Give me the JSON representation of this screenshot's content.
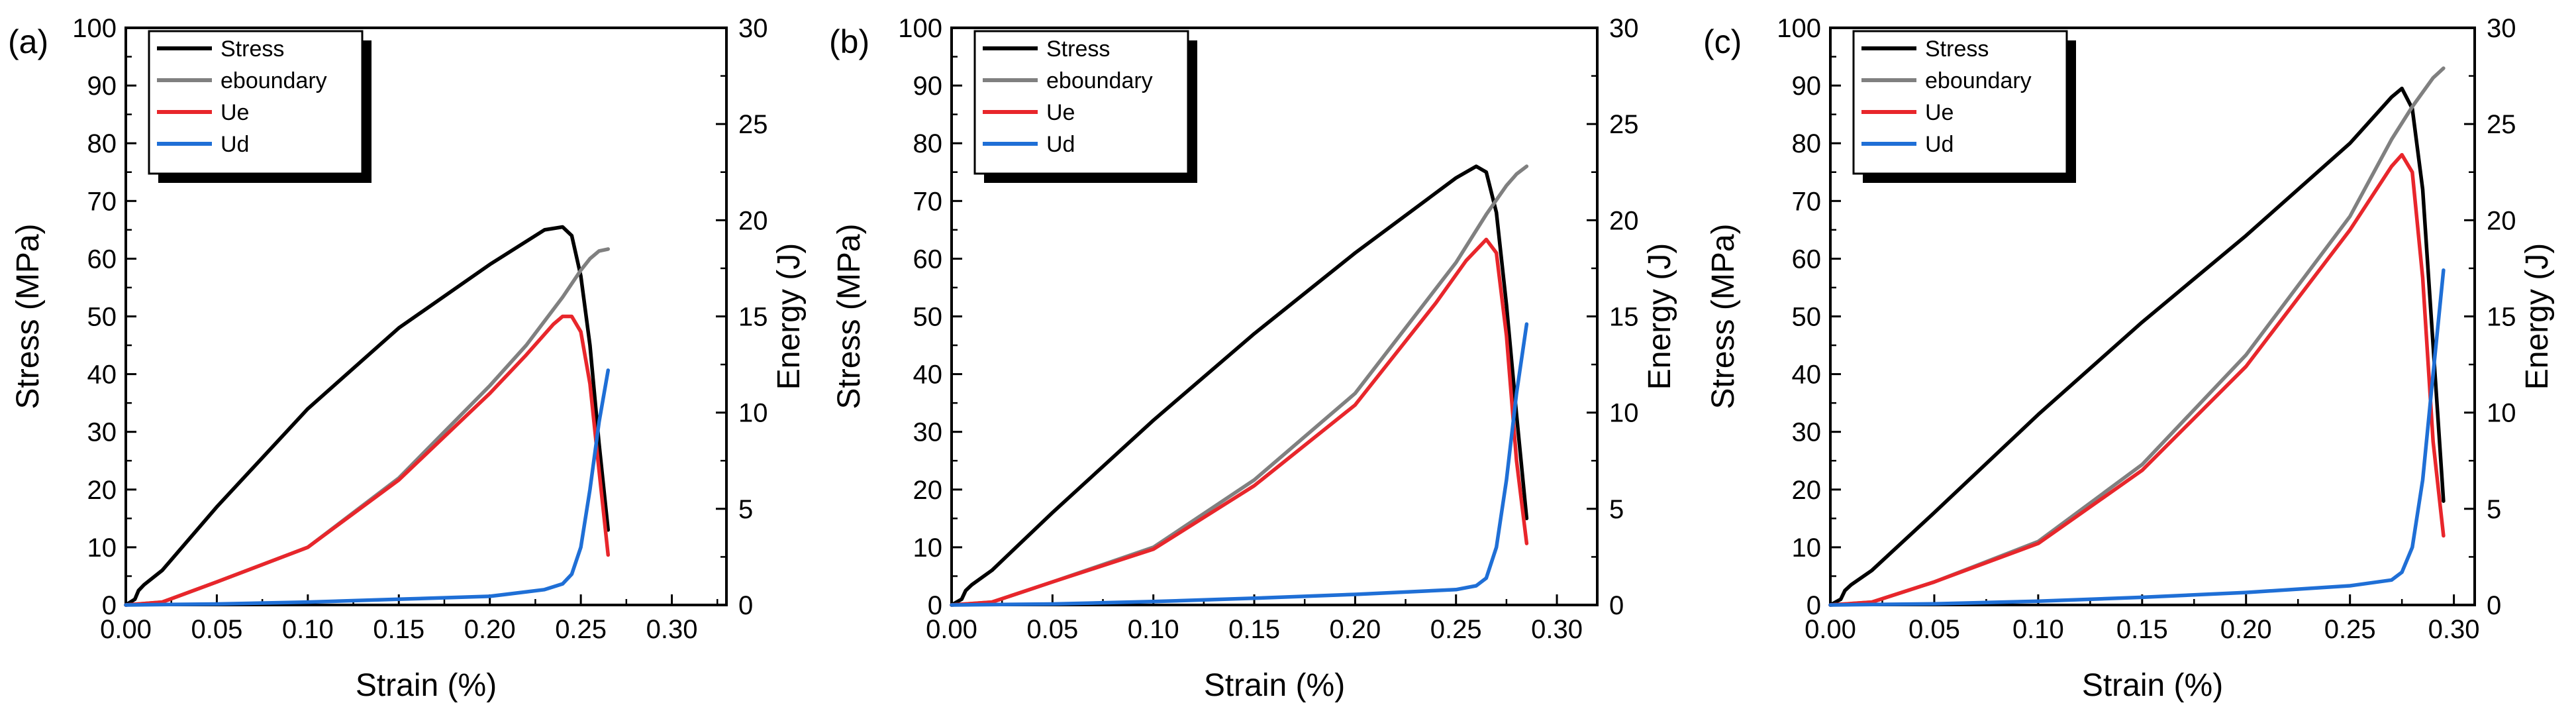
{
  "figure": {
    "panel_letters": [
      "(a)",
      "(b)",
      "(c)"
    ]
  },
  "chart_data": [
    {
      "type": "line",
      "panel_label": "(a)",
      "xlabel": "Strain (%)",
      "ylabel_left": "Stress (MPa)",
      "ylabel_right": "Energy (J)",
      "xlim": [
        0,
        0.33
      ],
      "ylim_left": [
        0,
        100
      ],
      "ylim_right": [
        0,
        30
      ],
      "x_ticks": [
        "0.00",
        "0.05",
        "0.10",
        "0.15",
        "0.20",
        "0.25",
        "0.30"
      ],
      "y_ticks_left": [
        "0",
        "10",
        "20",
        "30",
        "40",
        "50",
        "60",
        "70",
        "80",
        "90",
        "100"
      ],
      "y_ticks_right": [
        "0",
        "5",
        "10",
        "15",
        "20",
        "25",
        "30"
      ],
      "legend": [
        "Stress",
        "eboundary",
        "Ue",
        "Ud"
      ],
      "series": [
        {
          "name": "Stress",
          "axis": "left",
          "color": "#000000",
          "x": [
            0,
            0.005,
            0.007,
            0.01,
            0.02,
            0.05,
            0.1,
            0.15,
            0.2,
            0.23,
            0.24,
            0.245,
            0.25,
            0.255,
            0.26,
            0.265
          ],
          "y": [
            0,
            1,
            2.5,
            3.5,
            6,
            17,
            34,
            48,
            59,
            65,
            65.5,
            64,
            57,
            45,
            28,
            13
          ]
        },
        {
          "name": "eboundary",
          "axis": "right",
          "color": "#808080",
          "x": [
            0,
            0.02,
            0.05,
            0.1,
            0.15,
            0.2,
            0.22,
            0.24,
            0.25,
            0.255,
            0.26,
            0.265
          ],
          "y": [
            0,
            0.15,
            1.2,
            3.0,
            6.6,
            11.4,
            13.5,
            16,
            17.4,
            18.0,
            18.4,
            18.5
          ]
        },
        {
          "name": "Ue",
          "axis": "right",
          "color": "#e8262b",
          "x": [
            0,
            0.02,
            0.05,
            0.1,
            0.15,
            0.2,
            0.22,
            0.235,
            0.24,
            0.245,
            0.25,
            0.255,
            0.26,
            0.265
          ],
          "y": [
            0,
            0.15,
            1.2,
            3.0,
            6.5,
            11.0,
            13.0,
            14.6,
            15.0,
            15.0,
            14.2,
            11.5,
            7,
            2.6
          ]
        },
        {
          "name": "Ud",
          "axis": "right",
          "color": "#1f6fd6",
          "x": [
            0,
            0.05,
            0.1,
            0.15,
            0.2,
            0.23,
            0.24,
            0.245,
            0.25,
            0.255,
            0.26,
            0.265
          ],
          "y": [
            0,
            0.05,
            0.15,
            0.3,
            0.45,
            0.8,
            1.1,
            1.6,
            3.0,
            6,
            9.5,
            12.2
          ]
        }
      ]
    },
    {
      "type": "line",
      "panel_label": "(b)",
      "xlabel": "Strain (%)",
      "ylabel_left": "Stress (MPa)",
      "ylabel_right": "Energy (J)",
      "xlim": [
        0,
        0.32
      ],
      "ylim_left": [
        0,
        100
      ],
      "ylim_right": [
        0,
        30
      ],
      "x_ticks": [
        "0.00",
        "0.05",
        "0.10",
        "0.15",
        "0.20",
        "0.25",
        "0.30"
      ],
      "y_ticks_left": [
        "0",
        "10",
        "20",
        "30",
        "40",
        "50",
        "60",
        "70",
        "80",
        "90",
        "100"
      ],
      "y_ticks_right": [
        "0",
        "5",
        "10",
        "15",
        "20",
        "25",
        "30"
      ],
      "legend": [
        "Stress",
        "eboundary",
        "Ue",
        "Ud"
      ],
      "series": [
        {
          "name": "Stress",
          "axis": "left",
          "color": "#000000",
          "x": [
            0,
            0.005,
            0.007,
            0.01,
            0.02,
            0.05,
            0.1,
            0.15,
            0.2,
            0.25,
            0.26,
            0.265,
            0.27,
            0.275,
            0.28,
            0.285
          ],
          "y": [
            0,
            1,
            2.5,
            3.5,
            6,
            16,
            32,
            47,
            61,
            74,
            76,
            75,
            68,
            52,
            33,
            15
          ]
        },
        {
          "name": "eboundary",
          "axis": "right",
          "color": "#808080",
          "x": [
            0,
            0.02,
            0.05,
            0.1,
            0.15,
            0.2,
            0.25,
            0.265,
            0.275,
            0.28,
            0.285
          ],
          "y": [
            0,
            0.15,
            1.2,
            3.0,
            6.5,
            11.0,
            17.8,
            20.3,
            21.8,
            22.4,
            22.8
          ]
        },
        {
          "name": "Ue",
          "axis": "right",
          "color": "#e8262b",
          "x": [
            0,
            0.02,
            0.05,
            0.1,
            0.15,
            0.2,
            0.24,
            0.255,
            0.265,
            0.27,
            0.275,
            0.28,
            0.285
          ],
          "y": [
            0,
            0.15,
            1.2,
            2.9,
            6.2,
            10.4,
            15.7,
            17.9,
            19.0,
            18.3,
            14.0,
            7.5,
            3.2
          ]
        },
        {
          "name": "Ud",
          "axis": "right",
          "color": "#1f6fd6",
          "x": [
            0,
            0.05,
            0.1,
            0.15,
            0.2,
            0.25,
            0.26,
            0.265,
            0.27,
            0.275,
            0.28,
            0.285
          ],
          "y": [
            0,
            0.05,
            0.18,
            0.35,
            0.55,
            0.8,
            1.0,
            1.4,
            3.0,
            6.5,
            11,
            14.6
          ]
        }
      ]
    },
    {
      "type": "line",
      "panel_label": "(c)",
      "xlabel": "Strain (%)",
      "ylabel_left": "Stress (MPa)",
      "ylabel_right": "Energy (J)",
      "xlim": [
        0,
        0.31
      ],
      "ylim_left": [
        0,
        100
      ],
      "ylim_right": [
        0,
        30
      ],
      "x_ticks": [
        "0.00",
        "0.05",
        "0.10",
        "0.15",
        "0.20",
        "0.25",
        "0.30"
      ],
      "y_ticks_left": [
        "0",
        "10",
        "20",
        "30",
        "40",
        "50",
        "60",
        "70",
        "80",
        "90",
        "100"
      ],
      "y_ticks_right": [
        "0",
        "5",
        "10",
        "15",
        "20",
        "25",
        "30"
      ],
      "legend": [
        "Stress",
        "eboundary",
        "Ue",
        "Ud"
      ],
      "series": [
        {
          "name": "Stress",
          "axis": "left",
          "color": "#000000",
          "x": [
            0,
            0.005,
            0.007,
            0.01,
            0.02,
            0.05,
            0.1,
            0.15,
            0.2,
            0.25,
            0.27,
            0.275,
            0.28,
            0.285,
            0.29,
            0.295
          ],
          "y": [
            0,
            1,
            2.5,
            3.5,
            6,
            16,
            33,
            49,
            64,
            80,
            88,
            89.5,
            86,
            72,
            45,
            18
          ]
        },
        {
          "name": "eboundary",
          "axis": "right",
          "color": "#808080",
          "x": [
            0,
            0.02,
            0.05,
            0.1,
            0.15,
            0.2,
            0.25,
            0.27,
            0.28,
            0.29,
            0.295
          ],
          "y": [
            0,
            0.15,
            1.2,
            3.3,
            7.3,
            13.0,
            20.2,
            24.2,
            25.9,
            27.4,
            27.9
          ]
        },
        {
          "name": "Ue",
          "axis": "right",
          "color": "#e8262b",
          "x": [
            0,
            0.02,
            0.05,
            0.1,
            0.15,
            0.2,
            0.25,
            0.27,
            0.275,
            0.28,
            0.285,
            0.29,
            0.295
          ],
          "y": [
            0,
            0.15,
            1.2,
            3.2,
            7.0,
            12.4,
            19.5,
            22.8,
            23.4,
            22.5,
            17.0,
            8.5,
            3.6
          ]
        },
        {
          "name": "Ud",
          "axis": "right",
          "color": "#1f6fd6",
          "x": [
            0,
            0.05,
            0.1,
            0.15,
            0.2,
            0.25,
            0.27,
            0.275,
            0.28,
            0.285,
            0.29,
            0.295
          ],
          "y": [
            0,
            0.06,
            0.2,
            0.4,
            0.65,
            1.0,
            1.3,
            1.7,
            3.0,
            6.5,
            12,
            17.4
          ]
        }
      ]
    }
  ]
}
